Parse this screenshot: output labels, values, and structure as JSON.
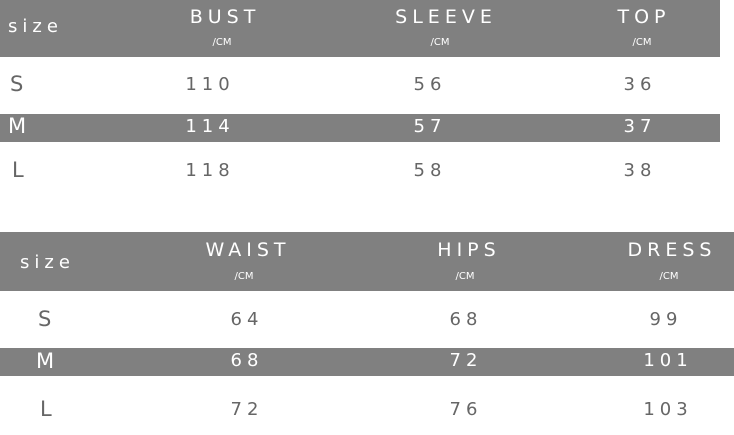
{
  "table1": {
    "size_label": "size",
    "columns": [
      {
        "name": "BUST",
        "unit": "/CM"
      },
      {
        "name": "SLEEVE",
        "unit": "/CM"
      },
      {
        "name": "TOP",
        "unit": "/CM"
      }
    ],
    "rows": [
      {
        "size": "S",
        "values": [
          "110",
          "56",
          "36"
        ]
      },
      {
        "size": "M",
        "values": [
          "114",
          "57",
          "37"
        ]
      },
      {
        "size": "L",
        "values": [
          "118",
          "58",
          "38"
        ]
      }
    ]
  },
  "table2": {
    "size_label": "size",
    "columns": [
      {
        "name": "WAIST",
        "unit": "/CM"
      },
      {
        "name": "HIPS",
        "unit": "/CM"
      },
      {
        "name": "DRESS",
        "unit": "/CM"
      }
    ],
    "rows": [
      {
        "size": "S",
        "values": [
          "64",
          "68",
          "99"
        ]
      },
      {
        "size": "M",
        "values": [
          "68",
          "72",
          "101"
        ]
      },
      {
        "size": "L",
        "values": [
          "72",
          "76",
          "103"
        ]
      }
    ]
  },
  "colors": {
    "header": "#808080",
    "text": "#666666"
  }
}
